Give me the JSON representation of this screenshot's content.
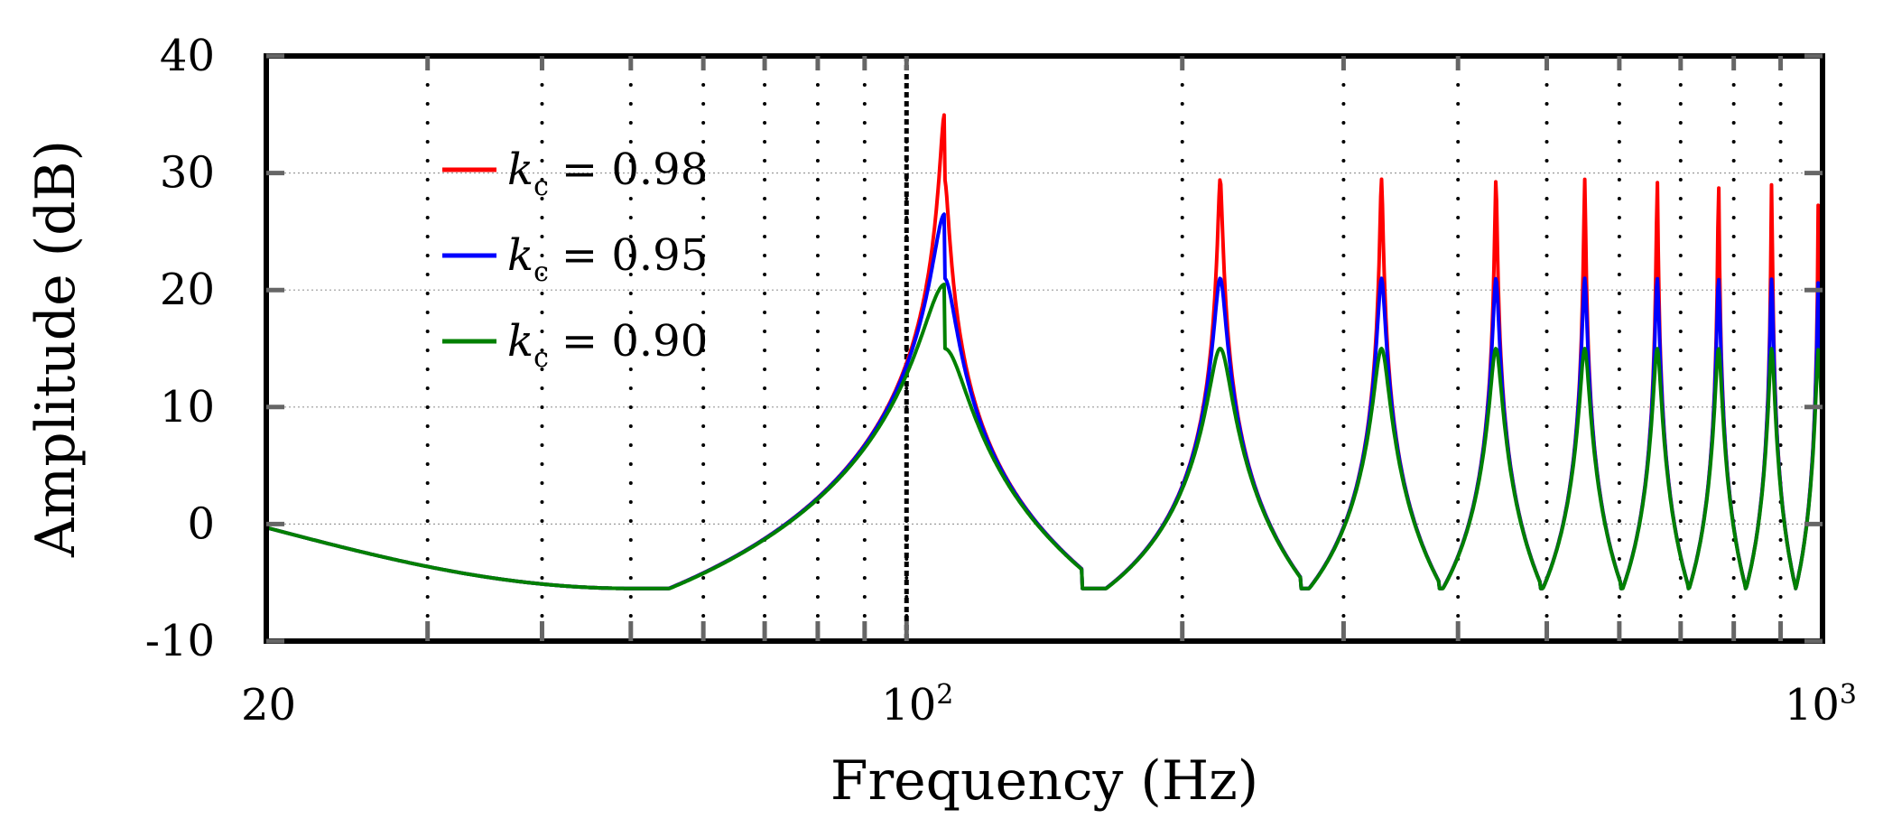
{
  "chart_data": {
    "type": "line",
    "title": "",
    "xlabel": "Frequency (Hz)",
    "ylabel": "Amplitude (dB)",
    "xscale": "log",
    "xlim": [
      20,
      1000
    ],
    "ylim": [
      -10,
      40
    ],
    "x_ticks": [
      {
        "value": 20,
        "label": "20"
      },
      {
        "value": 100,
        "label": "10",
        "exp": "2"
      },
      {
        "value": 1000,
        "label": "10",
        "exp": "3"
      }
    ],
    "y_ticks": [
      {
        "value": 40,
        "label": "40"
      },
      {
        "value": 30,
        "label": "30"
      },
      {
        "value": 20,
        "label": "20"
      },
      {
        "value": 10,
        "label": "10"
      },
      {
        "value": 0,
        "label": "0"
      },
      {
        "value": -10,
        "label": "-10"
      }
    ],
    "vertical_dotted_lines_hz": [
      30,
      40,
      50,
      60,
      70,
      80,
      90,
      100,
      200,
      300,
      400,
      500,
      600,
      700,
      800,
      900
    ],
    "dashed_reference_line_hz": 100,
    "horizontal_grid_db": [
      30,
      20,
      10,
      0
    ],
    "resonance_peaks_hz": [
      110,
      220,
      330,
      440,
      550,
      660,
      770,
      880,
      990
    ],
    "antiresonance_dips_hz": [
      50,
      165,
      275,
      385,
      495,
      605,
      715,
      825,
      935
    ],
    "dip_level_db": -5.5,
    "value_at_20hz_db": -0.3,
    "legend_position": "top-left",
    "series": [
      {
        "name": "k_c = 0.98",
        "label_symbol": "k",
        "label_sub": "c",
        "label_value": "= 0.98",
        "color": "#ff0000",
        "peak_db": 35
      },
      {
        "name": "k_c = 0.95",
        "label_symbol": "k",
        "label_sub": "c",
        "label_value": "= 0.95",
        "color": "#0000ff",
        "peak_db": 26.5
      },
      {
        "name": "k_c = 0.90",
        "label_symbol": "k",
        "label_sub": "c",
        "label_value": "= 0.90",
        "color": "#008000",
        "peak_db": 20.5
      }
    ]
  }
}
